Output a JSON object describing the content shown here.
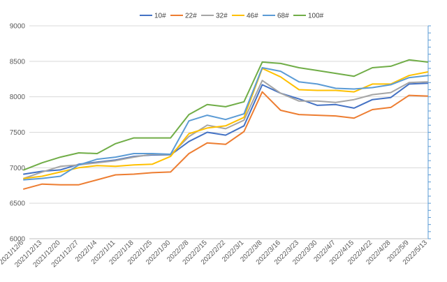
{
  "chart_data": {
    "type": "line",
    "title": "",
    "xlabel": "",
    "ylabel": "",
    "ylim": [
      6000,
      9000
    ],
    "yticks": [
      6000,
      6500,
      7000,
      7500,
      8000,
      8500,
      9000
    ],
    "grid": true,
    "legend_position": "top",
    "x": [
      "2021/12/6",
      "2021/12/13",
      "2021/12/20",
      "2021/12/27",
      "2022/1/4",
      "2022/1/11",
      "2022/1/18",
      "2022/1/25",
      "2022/1/30",
      "2022/2/8",
      "2022/2/15",
      "2022/2/22",
      "2022/3/1",
      "2022/3/8",
      "2022/3/16",
      "2022/3/23",
      "2022/3/30",
      "2022/4/7",
      "2022/4/15",
      "2022/4/22",
      "2022/4/28",
      "2022/5/9",
      "2022/5/13"
    ],
    "series": [
      {
        "name": "10#",
        "color": "#4472c4",
        "values": [
          6910,
          6950,
          6970,
          7050,
          7080,
          7110,
          7160,
          7180,
          7180,
          7370,
          7500,
          7460,
          7590,
          8170,
          8050,
          7970,
          7880,
          7890,
          7840,
          7960,
          7990,
          8180,
          8190
        ]
      },
      {
        "name": "22#",
        "color": "#ed7d31",
        "values": [
          6700,
          6770,
          6760,
          6760,
          6830,
          6900,
          6910,
          6930,
          6940,
          7200,
          7350,
          7330,
          7510,
          8070,
          7810,
          7750,
          7740,
          7730,
          7700,
          7820,
          7850,
          8020,
          8010
        ]
      },
      {
        "name": "32#",
        "color": "#a5a5a5",
        "values": [
          6850,
          6940,
          7020,
          7040,
          7070,
          7100,
          7150,
          7190,
          7180,
          7440,
          7600,
          7550,
          7670,
          8230,
          8050,
          7940,
          7940,
          7920,
          7960,
          8030,
          8060,
          8200,
          8210
        ]
      },
      {
        "name": "46#",
        "color": "#ffc000",
        "values": [
          6850,
          6880,
          6940,
          7000,
          7030,
          7020,
          7040,
          7050,
          7160,
          7480,
          7560,
          7590,
          7710,
          8400,
          8280,
          8100,
          8090,
          8090,
          8070,
          8180,
          8180,
          8300,
          8350
        ]
      },
      {
        "name": "68#",
        "color": "#5b9bd5",
        "values": [
          6830,
          6850,
          6880,
          7040,
          7120,
          7150,
          7200,
          7200,
          7190,
          7660,
          7740,
          7680,
          7760,
          8410,
          8360,
          8210,
          8180,
          8120,
          8110,
          8130,
          8170,
          8270,
          8300
        ]
      },
      {
        "name": "100#",
        "color": "#70ad47",
        "values": [
          6970,
          7070,
          7150,
          7210,
          7200,
          7340,
          7420,
          7420,
          7420,
          7750,
          7890,
          7860,
          7930,
          8490,
          8470,
          8410,
          8370,
          8330,
          8290,
          8410,
          8430,
          8520,
          8490
        ]
      }
    ]
  }
}
